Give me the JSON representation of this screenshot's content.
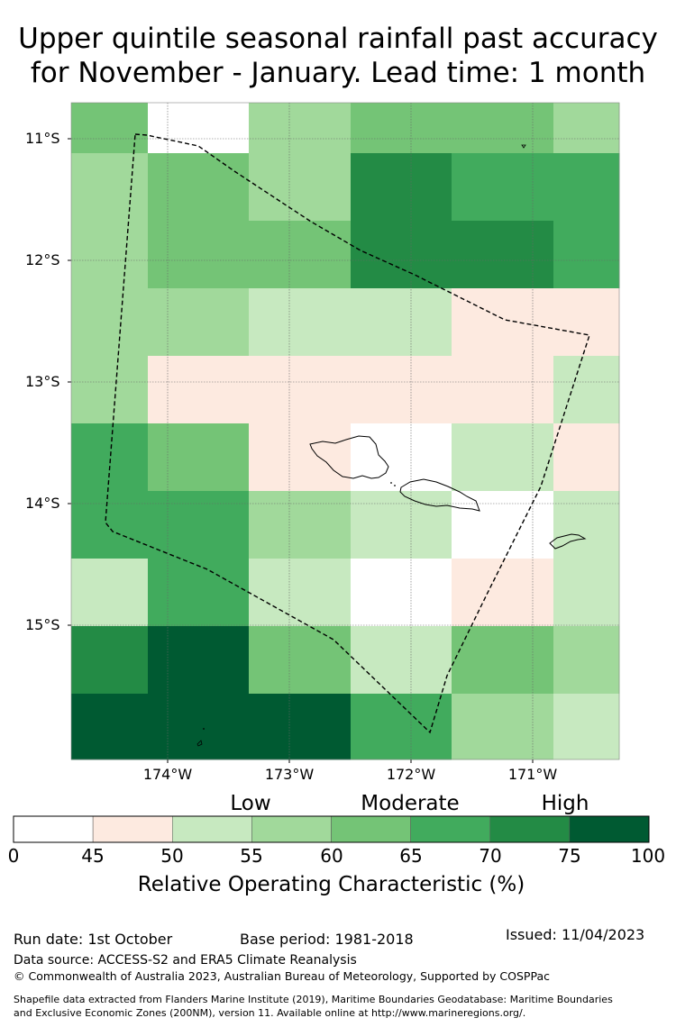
{
  "title": {
    "line1": "Upper quintile seasonal rainfall past accuracy",
    "line2": "for November - January. Lead time: 1 month"
  },
  "map": {
    "lat_labels": [
      "11°S",
      "12°S",
      "13°S",
      "14°S",
      "15°S"
    ],
    "lon_labels": [
      "174°W",
      "173°W",
      "172°W",
      "171°W"
    ],
    "roc_grid": [
      [
        62,
        40,
        57,
        63,
        63,
        58
      ],
      [
        58,
        63,
        58,
        73,
        68,
        68
      ],
      [
        58,
        63,
        63,
        73,
        73,
        68
      ],
      [
        58,
        58,
        53,
        53,
        47,
        47
      ],
      [
        58,
        47,
        47,
        47,
        47,
        53
      ],
      [
        68,
        63,
        47,
        40,
        53,
        47
      ],
      [
        68,
        68,
        58,
        53,
        40,
        53
      ],
      [
        53,
        68,
        53,
        40,
        47,
        53
      ],
      [
        73,
        78,
        62,
        53,
        63,
        58
      ],
      [
        78,
        78,
        78,
        68,
        58,
        53
      ]
    ]
  },
  "legend": {
    "categories": [
      "Low",
      "Moderate",
      "High"
    ],
    "ticks": [
      "0",
      "45",
      "50",
      "55",
      "60",
      "65",
      "70",
      "75",
      "100"
    ],
    "colors": [
      "#ffffff",
      "#fdeae0",
      "#c7e9c0",
      "#a1d99b",
      "#74c476",
      "#41ab5d",
      "#238b45",
      "#005a32"
    ],
    "label": "Relative Operating Characteristic (%)"
  },
  "footer": {
    "run_date": "Run date: 1st October",
    "base_period": "Base period: 1981-2018",
    "issued": "Issued: 11/04/2023",
    "data_source": "Data source: ACCESS-S2 and ERA5 Climate Reanalysis",
    "copyright": "© Commonwealth of Australia 2023, Australian Bureau of Meteorology, Supported by COSPPac",
    "shapefile_line1": "Shapefile data extracted from Flanders Marine Institute (2019), Maritime Boundaries Geodatabase: Maritime Boundaries",
    "shapefile_line2": "and Exclusive Economic Zones (200NM), version 11. Available online at http://www.marineregions.org/."
  }
}
